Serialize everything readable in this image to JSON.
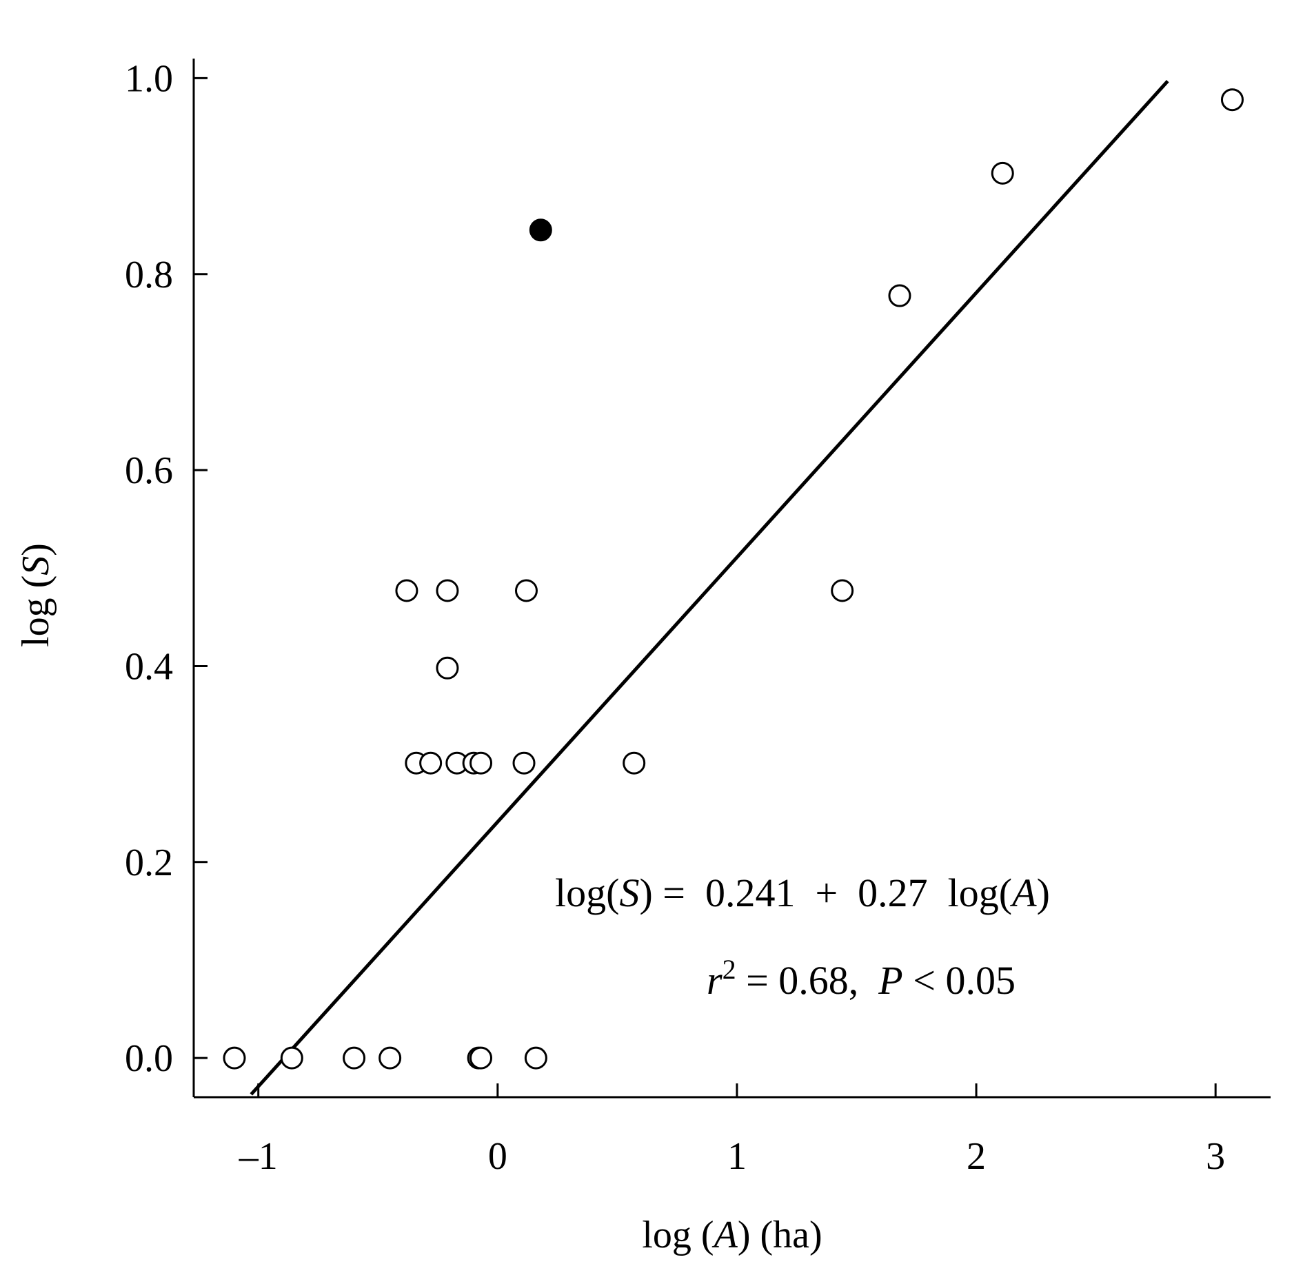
{
  "chart_data": {
    "type": "scatter",
    "xlabel": "log (A) (ha)",
    "ylabel": "log (S)",
    "xlim": [
      -1.27,
      3.23
    ],
    "ylim": [
      -0.04,
      1.02
    ],
    "x_ticks": [
      -1,
      0,
      1,
      2,
      3
    ],
    "x_tick_labels": [
      "–1",
      "0",
      "1",
      "2",
      "3"
    ],
    "y_ticks": [
      0.0,
      0.2,
      0.4,
      0.6,
      0.8,
      1.0
    ],
    "y_tick_labels": [
      "0.0",
      "0.2",
      "0.4",
      "0.6",
      "0.8",
      "1.0"
    ],
    "grid": false,
    "series": [
      {
        "marker": "open-circle",
        "points": [
          {
            "x": -1.1,
            "y": 0.0
          },
          {
            "x": -0.86,
            "y": 0.0
          },
          {
            "x": -0.6,
            "y": 0.0
          },
          {
            "x": -0.45,
            "y": 0.0
          },
          {
            "x": -0.08,
            "y": 0.0
          },
          {
            "x": -0.07,
            "y": 0.0
          },
          {
            "x": 0.16,
            "y": 0.0
          },
          {
            "x": -0.34,
            "y": 0.301
          },
          {
            "x": -0.28,
            "y": 0.301
          },
          {
            "x": -0.17,
            "y": 0.301
          },
          {
            "x": -0.1,
            "y": 0.301
          },
          {
            "x": -0.07,
            "y": 0.301
          },
          {
            "x": 0.11,
            "y": 0.301
          },
          {
            "x": 0.57,
            "y": 0.301
          },
          {
            "x": -0.21,
            "y": 0.398
          },
          {
            "x": -0.38,
            "y": 0.477
          },
          {
            "x": -0.21,
            "y": 0.477
          },
          {
            "x": 0.12,
            "y": 0.477
          },
          {
            "x": 1.44,
            "y": 0.477
          },
          {
            "x": 1.68,
            "y": 0.778
          },
          {
            "x": 2.11,
            "y": 0.903
          },
          {
            "x": 3.07,
            "y": 0.978
          }
        ]
      },
      {
        "marker": "filled-circle",
        "points": [
          {
            "x": 0.18,
            "y": 0.845
          }
        ]
      }
    ],
    "fit_line": {
      "intercept": 0.241,
      "slope": 0.27,
      "x_range": [
        -1.03,
        2.8
      ]
    },
    "annotations": {
      "equation": {
        "lhs_func": "log(",
        "lhs_var": "S",
        "lhs_close": ")",
        "eq": " =  0.241  +  0.27  log(",
        "rhs_var": "A",
        "rhs_close": ")"
      },
      "stats": {
        "r": "r",
        "sup": "2",
        "mid": " = 0.68,  ",
        "p": "P",
        "tail": " < 0.05"
      }
    }
  }
}
